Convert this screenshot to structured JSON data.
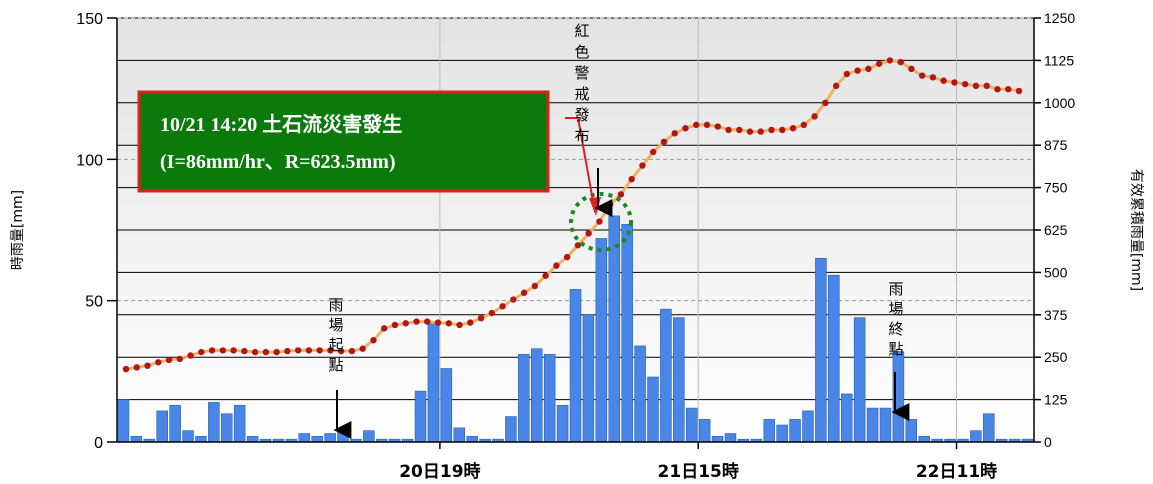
{
  "chart_data": {
    "type": "bar",
    "left_axis": {
      "label": "時雨量[mm]",
      "ylim": [
        0,
        150
      ],
      "ticks": [
        "0",
        "50",
        "100",
        "150"
      ]
    },
    "right_axis": {
      "label": "有效累積雨量[mm]",
      "ylim": [
        0,
        1250
      ],
      "ticks": [
        "0",
        "125",
        "250",
        "375",
        "500",
        "625",
        "750",
        "875",
        "1000",
        "1125",
        "1250"
      ]
    },
    "x_tick_labels": [
      {
        "label": "20日19時",
        "index": 25
      },
      {
        "label": "21日15時",
        "index": 45
      },
      {
        "label": "22日11時",
        "index": 65
      }
    ],
    "series": [
      {
        "type": "bar",
        "axis": "left",
        "color": "#4A86E8",
        "values": [
          15,
          2,
          1,
          11,
          13,
          4,
          2,
          14,
          10,
          13,
          2,
          1,
          1,
          1,
          3,
          2,
          3,
          4,
          1,
          4,
          1,
          1,
          1,
          18,
          42,
          26,
          5,
          2,
          1,
          1,
          9,
          31,
          33,
          31,
          13,
          54,
          45,
          72,
          80,
          77,
          34,
          23,
          47,
          44,
          12,
          8,
          2,
          3,
          1,
          1,
          8,
          6,
          8,
          11,
          65,
          59,
          17,
          44,
          12,
          12,
          32,
          8,
          2,
          1,
          1,
          1,
          4,
          10,
          1,
          1,
          1
        ]
      },
      {
        "type": "line",
        "axis": "right",
        "color": "#F0B060",
        "marker_color": "#B01818",
        "values": [
          215,
          220,
          225,
          235,
          242,
          245,
          255,
          265,
          270,
          270,
          270,
          268,
          265,
          265,
          265,
          268,
          270,
          270,
          270,
          270,
          268,
          268,
          275,
          300,
          335,
          345,
          350,
          355,
          355,
          352,
          350,
          345,
          352,
          365,
          380,
          400,
          420,
          440,
          460,
          490,
          520,
          545,
          580,
          615,
          650,
          700,
          730,
          775,
          815,
          855,
          885,
          910,
          925,
          935,
          935,
          930,
          920,
          920,
          915,
          915,
          920,
          920,
          925,
          935,
          960,
          1000,
          1050,
          1085,
          1095,
          1100,
          1115,
          1125,
          1120,
          1100,
          1080,
          1075,
          1065,
          1060,
          1055,
          1050,
          1050,
          1040,
          1040,
          1035
        ]
      }
    ],
    "annotations": {
      "callout_line1": "10/21 14:20  土石流災害發生",
      "callout_line2": "(I=86mm/hr、R=623.5mm)",
      "red_alert": "紅色警戒發布",
      "rain_start": "雨場起點",
      "rain_end": "雨場終點"
    },
    "colors": {
      "plot_top": "#E8E8E8",
      "plot_bottom": "#FFFFFF",
      "callout_bg": "#0B7A0B",
      "callout_border": "#E02020",
      "circle": "#1A8A1A",
      "arrow_red": "#E02020"
    },
    "grid": true
  }
}
